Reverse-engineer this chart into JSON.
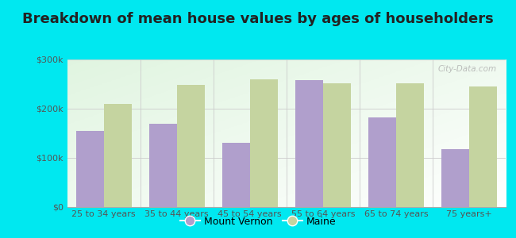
{
  "title": "Breakdown of mean house values by ages of householders",
  "categories": [
    "25 to 34 years",
    "35 to 44 years",
    "45 to 54 years",
    "55 to 64 years",
    "65 to 74 years",
    "75 years+"
  ],
  "mount_vernon": [
    155000,
    170000,
    130000,
    258000,
    183000,
    118000
  ],
  "maine": [
    210000,
    248000,
    260000,
    252000,
    252000,
    245000
  ],
  "mv_color": "#b09fcc",
  "maine_color": "#c5d4a0",
  "background_color": "#00e8f0",
  "plot_bg": "#eef5e8",
  "ylim": [
    0,
    300000
  ],
  "yticks": [
    0,
    100000,
    200000,
    300000
  ],
  "ytick_labels": [
    "$0",
    "$100k",
    "$200k",
    "$300k"
  ],
  "legend_mv": "Mount Vernon",
  "legend_maine": "Maine",
  "bar_width": 0.38,
  "title_fontsize": 13,
  "tick_fontsize": 8,
  "legend_fontsize": 9
}
